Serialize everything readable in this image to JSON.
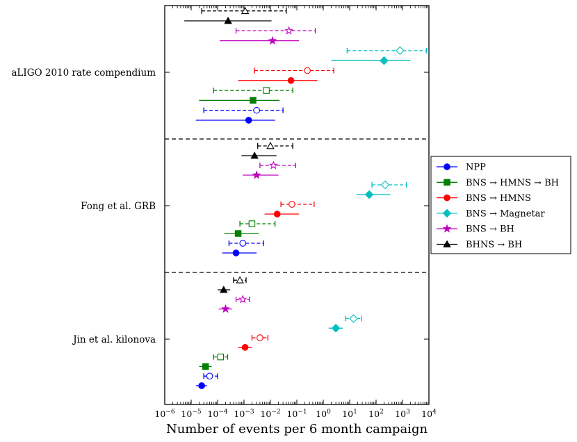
{
  "chart_data": {
    "type": "scatter",
    "title": "",
    "xlabel": "Number of events per 6 month campaign",
    "xscale": "log",
    "xlim": [
      1e-06,
      10000
    ],
    "x_tick_labels": [
      "10−6",
      "10−5",
      "10−4",
      "10−3",
      "10−2",
      "10−1",
      "100",
      "101",
      "102",
      "103",
      "104"
    ],
    "x_tick_exponents": [
      -6,
      -5,
      -4,
      -3,
      -2,
      -1,
      0,
      1,
      2,
      3,
      4
    ],
    "groups": [
      {
        "label": "aLIGO 2010 rate compendium",
        "order": 1
      },
      {
        "label": "Fong et al. GRB",
        "order": 2
      },
      {
        "label": "Jin et al. kilonova",
        "order": 3
      }
    ],
    "legend_position": "right",
    "legend": [
      {
        "label": "NPP",
        "color": "#0000ff",
        "marker": "circle"
      },
      {
        "label": "BNS → HMNS → BH",
        "color": "#007f00",
        "marker": "square"
      },
      {
        "label": "BNS → HMNS",
        "color": "#ff0000",
        "marker": "circle"
      },
      {
        "label": "BNS → Magnetar",
        "color": "#00bfbf",
        "marker": "diamond"
      },
      {
        "label": "BNS → BH",
        "color": "#bf00bf",
        "marker": "star"
      },
      {
        "label": "BHNS → BH",
        "color": "#000000",
        "marker": "triangle"
      }
    ],
    "series_note": "filled marker / solid line = solid; open marker / dashed line = dashed",
    "points": [
      {
        "group": "aLIGO 2010 rate compendium",
        "model": "NPP",
        "style": "solid",
        "value": 0.0015,
        "low": 1.5e-05,
        "high": 0.015
      },
      {
        "group": "aLIGO 2010 rate compendium",
        "model": "NPP",
        "style": "dashed",
        "value": 0.003,
        "low": 3e-05,
        "high": 0.03
      },
      {
        "group": "aLIGO 2010 rate compendium",
        "model": "BNS → HMNS → BH",
        "style": "solid",
        "value": 0.0022,
        "low": 2e-05,
        "high": 0.022
      },
      {
        "group": "aLIGO 2010 rate compendium",
        "model": "BNS → HMNS → BH",
        "style": "dashed",
        "value": 0.007,
        "low": 7e-05,
        "high": 0.07
      },
      {
        "group": "aLIGO 2010 rate compendium",
        "model": "BNS → HMNS",
        "style": "solid",
        "value": 0.06,
        "low": 0.0006,
        "high": 0.6
      },
      {
        "group": "aLIGO 2010 rate compendium",
        "model": "BNS → HMNS",
        "style": "dashed",
        "value": 0.25,
        "low": 0.0025,
        "high": 2.5
      },
      {
        "group": "aLIGO 2010 rate compendium",
        "model": "BNS → Magnetar",
        "style": "solid",
        "value": 200,
        "low": 2,
        "high": 2000
      },
      {
        "group": "aLIGO 2010 rate compendium",
        "model": "BNS → Magnetar",
        "style": "dashed",
        "value": 800,
        "low": 8,
        "high": 8000
      },
      {
        "group": "aLIGO 2010 rate compendium",
        "model": "BNS → BH",
        "style": "solid",
        "value": 0.012,
        "low": 0.00012,
        "high": 0.12
      },
      {
        "group": "aLIGO 2010 rate compendium",
        "model": "BNS → BH",
        "style": "dashed",
        "value": 0.05,
        "low": 0.0005,
        "high": 0.5
      },
      {
        "group": "aLIGO 2010 rate compendium",
        "model": "BHNS → BH",
        "style": "solid",
        "value": 0.00025,
        "low": 5.5e-06,
        "high": 0.011
      },
      {
        "group": "aLIGO 2010 rate compendium",
        "model": "BHNS → BH",
        "style": "dashed",
        "value": 0.0011,
        "low": 2.5e-05,
        "high": 0.04
      },
      {
        "group": "Fong et al. GRB",
        "model": "NPP",
        "style": "solid",
        "value": 0.0005,
        "low": 0.00015,
        "high": 0.003
      },
      {
        "group": "Fong et al. GRB",
        "model": "NPP",
        "style": "dashed",
        "value": 0.0009,
        "low": 0.00027,
        "high": 0.0055
      },
      {
        "group": "Fong et al. GRB",
        "model": "BNS → HMNS → BH",
        "style": "solid",
        "value": 0.0006,
        "low": 0.00018,
        "high": 0.0036
      },
      {
        "group": "Fong et al. GRB",
        "model": "BNS → HMNS → BH",
        "style": "dashed",
        "value": 0.002,
        "low": 0.0007,
        "high": 0.015
      },
      {
        "group": "Fong et al. GRB",
        "model": "BNS → HMNS",
        "style": "solid",
        "value": 0.018,
        "low": 0.006,
        "high": 0.12
      },
      {
        "group": "Fong et al. GRB",
        "model": "BNS → HMNS",
        "style": "dashed",
        "value": 0.065,
        "low": 0.025,
        "high": 0.45
      },
      {
        "group": "Fong et al. GRB",
        "model": "BNS → Magnetar",
        "style": "solid",
        "value": 55,
        "low": 18,
        "high": 350
      },
      {
        "group": "Fong et al. GRB",
        "model": "BNS → Magnetar",
        "style": "dashed",
        "value": 220,
        "low": 70,
        "high": 1400
      },
      {
        "group": "Fong et al. GRB",
        "model": "BNS → BH",
        "style": "solid",
        "value": 0.003,
        "low": 0.0009,
        "high": 0.02
      },
      {
        "group": "Fong et al. GRB",
        "model": "BNS → BH",
        "style": "dashed",
        "value": 0.013,
        "low": 0.004,
        "high": 0.09
      },
      {
        "group": "Fong et al. GRB",
        "model": "BHNS → BH",
        "style": "solid",
        "value": 0.0025,
        "low": 0.0008,
        "high": 0.017
      },
      {
        "group": "Fong et al. GRB",
        "model": "BHNS → BH",
        "style": "dashed",
        "value": 0.01,
        "low": 0.0033,
        "high": 0.07
      },
      {
        "group": "Jin et al. kilonova",
        "model": "NPP",
        "style": "solid",
        "value": 2.5e-05,
        "low": 1.5e-05,
        "high": 4e-05
      },
      {
        "group": "Jin et al. kilonova",
        "model": "NPP",
        "style": "dashed",
        "value": 5e-05,
        "low": 3e-05,
        "high": 0.0001
      },
      {
        "group": "Jin et al. kilonova",
        "model": "BNS → HMNS → BH",
        "style": "solid",
        "value": 3.5e-05,
        "low": 2e-05,
        "high": 6e-05
      },
      {
        "group": "Jin et al. kilonova",
        "model": "BNS → HMNS → BH",
        "style": "dashed",
        "value": 0.00013,
        "low": 7e-05,
        "high": 0.00024
      },
      {
        "group": "Jin et al. kilonova",
        "model": "BNS → HMNS",
        "style": "solid",
        "value": 0.0011,
        "low": 0.0006,
        "high": 0.002
      },
      {
        "group": "Jin et al. kilonova",
        "model": "BNS → HMNS",
        "style": "dashed",
        "value": 0.004,
        "low": 0.002,
        "high": 0.008
      },
      {
        "group": "Jin et al. kilonova",
        "model": "BNS → Magnetar",
        "style": "solid",
        "value": 3,
        "low": 1.6,
        "high": 5.5
      },
      {
        "group": "Jin et al. kilonova",
        "model": "BNS → Magnetar",
        "style": "dashed",
        "value": 14,
        "low": 7,
        "high": 28
      },
      {
        "group": "Jin et al. kilonova",
        "model": "BNS → BH",
        "style": "solid",
        "value": 0.0002,
        "low": 0.00011,
        "high": 0.00036
      },
      {
        "group": "Jin et al. kilonova",
        "model": "BNS → BH",
        "style": "dashed",
        "value": 0.0009,
        "low": 0.0005,
        "high": 0.0016
      },
      {
        "group": "Jin et al. kilonova",
        "model": "BHNS → BH",
        "style": "solid",
        "value": 0.00017,
        "low": 0.0001,
        "high": 0.0003
      },
      {
        "group": "Jin et al. kilonova",
        "model": "BHNS → BH",
        "style": "dashed",
        "value": 0.0007,
        "low": 0.0004,
        "high": 0.0012
      }
    ]
  }
}
